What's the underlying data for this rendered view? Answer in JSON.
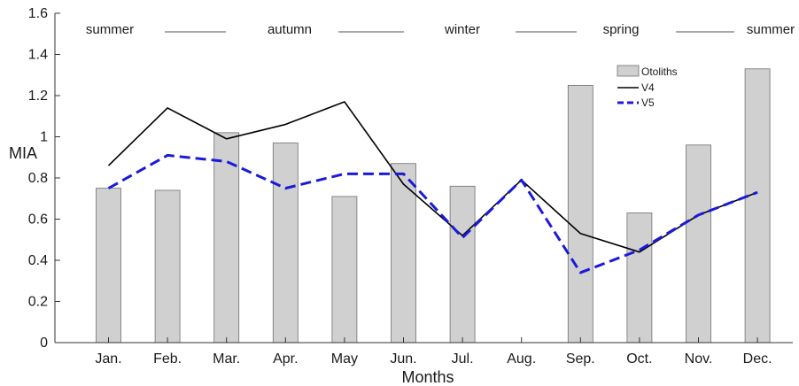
{
  "chart_data": {
    "type": "bar",
    "title": "",
    "xlabel": "Months",
    "ylabel": "MIA",
    "ylim": [
      0,
      1.6
    ],
    "yticks": [
      "0",
      "0.2",
      "0.4",
      "0.6",
      "0.8",
      "1",
      "1.2",
      "1.4",
      "1.6"
    ],
    "grid": false,
    "legend_position": "top-right",
    "categories": [
      "Jan.",
      "Feb.",
      "Mar.",
      "Apr.",
      "May",
      "Jun.",
      "Jul.",
      "Aug.",
      "Sep.",
      "Oct.",
      "Nov.",
      "Dec."
    ],
    "series": [
      {
        "name": "Otoliths",
        "type": "bar",
        "color": "#d0d0d0",
        "values": [
          0.75,
          0.74,
          1.02,
          0.97,
          0.71,
          0.87,
          0.76,
          null,
          1.25,
          0.63,
          0.96,
          1.33
        ]
      },
      {
        "name": "V4",
        "type": "line",
        "style": "solid",
        "color": "#000000",
        "values": [
          0.86,
          1.14,
          0.99,
          1.06,
          1.17,
          0.77,
          0.52,
          0.79,
          0.53,
          0.44,
          0.62,
          0.73
        ]
      },
      {
        "name": "V5",
        "type": "line",
        "style": "dashed",
        "color": "#1a1adb",
        "values": [
          0.75,
          0.91,
          0.88,
          0.75,
          0.82,
          0.82,
          0.51,
          0.79,
          0.34,
          0.45,
          0.62,
          0.73
        ]
      }
    ],
    "annotations": {
      "seasons": [
        "summer",
        "autumn",
        "winter",
        "spring",
        "summer"
      ]
    }
  }
}
